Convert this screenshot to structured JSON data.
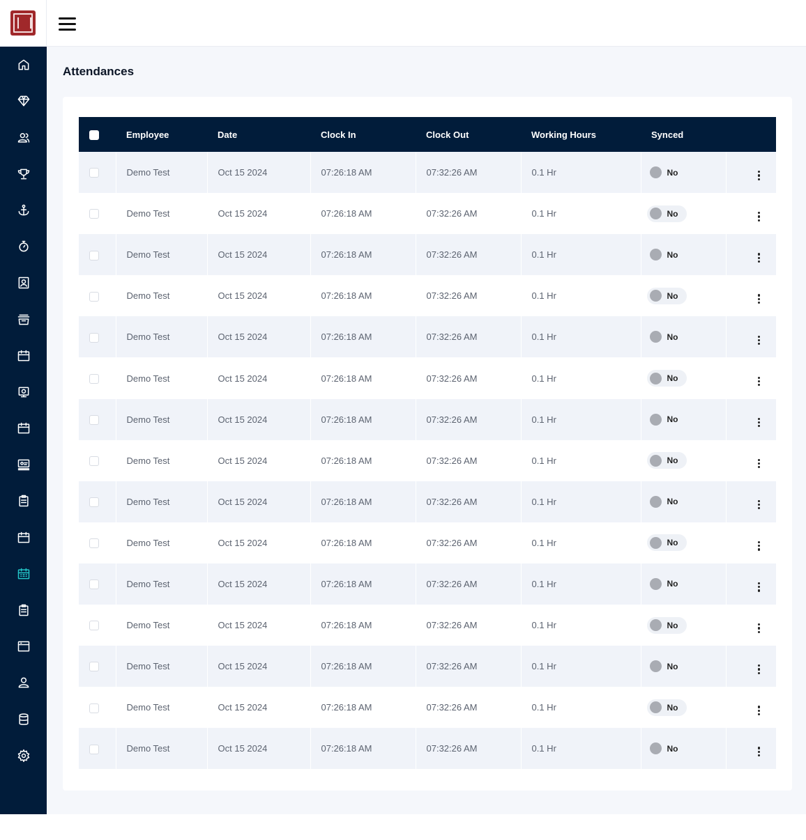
{
  "page": {
    "title": "Attendances"
  },
  "sidebar": {
    "items": [
      {
        "icon": "home-icon"
      },
      {
        "icon": "diamond-icon"
      },
      {
        "icon": "users-icon"
      },
      {
        "icon": "trophy-icon"
      },
      {
        "icon": "anchor-icon"
      },
      {
        "icon": "stopwatch-icon"
      },
      {
        "icon": "contact-card-icon"
      },
      {
        "icon": "inbox-tray-icon"
      },
      {
        "icon": "calendar-icon"
      },
      {
        "icon": "camera-icon"
      },
      {
        "icon": "calendar-icon"
      },
      {
        "icon": "id-card-icon"
      },
      {
        "icon": "clipboard-icon"
      },
      {
        "icon": "calendar-icon"
      },
      {
        "icon": "calendar-grid-icon",
        "active": true
      },
      {
        "icon": "clipboard-icon"
      },
      {
        "icon": "browser-window-icon"
      },
      {
        "icon": "user-icon"
      },
      {
        "icon": "database-icon"
      },
      {
        "icon": "settings-gear-icon"
      }
    ]
  },
  "table": {
    "columns": [
      "Employee",
      "Date",
      "Clock In",
      "Clock Out",
      "Working Hours",
      "Synced"
    ],
    "rows": [
      {
        "employee": "Demo Test",
        "date": "Oct 15 2024",
        "clock_in": "07:26:18 AM",
        "clock_out": "07:32:26 AM",
        "hours": "0.1 Hr",
        "synced": "No"
      },
      {
        "employee": "Demo Test",
        "date": "Oct 15 2024",
        "clock_in": "07:26:18 AM",
        "clock_out": "07:32:26 AM",
        "hours": "0.1 Hr",
        "synced": "No"
      },
      {
        "employee": "Demo Test",
        "date": "Oct 15 2024",
        "clock_in": "07:26:18 AM",
        "clock_out": "07:32:26 AM",
        "hours": "0.1 Hr",
        "synced": "No"
      },
      {
        "employee": "Demo Test",
        "date": "Oct 15 2024",
        "clock_in": "07:26:18 AM",
        "clock_out": "07:32:26 AM",
        "hours": "0.1 Hr",
        "synced": "No"
      },
      {
        "employee": "Demo Test",
        "date": "Oct 15 2024",
        "clock_in": "07:26:18 AM",
        "clock_out": "07:32:26 AM",
        "hours": "0.1 Hr",
        "synced": "No"
      },
      {
        "employee": "Demo Test",
        "date": "Oct 15 2024",
        "clock_in": "07:26:18 AM",
        "clock_out": "07:32:26 AM",
        "hours": "0.1 Hr",
        "synced": "No"
      },
      {
        "employee": "Demo Test",
        "date": "Oct 15 2024",
        "clock_in": "07:26:18 AM",
        "clock_out": "07:32:26 AM",
        "hours": "0.1 Hr",
        "synced": "No"
      },
      {
        "employee": "Demo Test",
        "date": "Oct 15 2024",
        "clock_in": "07:26:18 AM",
        "clock_out": "07:32:26 AM",
        "hours": "0.1 Hr",
        "synced": "No"
      },
      {
        "employee": "Demo Test",
        "date": "Oct 15 2024",
        "clock_in": "07:26:18 AM",
        "clock_out": "07:32:26 AM",
        "hours": "0.1 Hr",
        "synced": "No"
      },
      {
        "employee": "Demo Test",
        "date": "Oct 15 2024",
        "clock_in": "07:26:18 AM",
        "clock_out": "07:32:26 AM",
        "hours": "0.1 Hr",
        "synced": "No"
      },
      {
        "employee": "Demo Test",
        "date": "Oct 15 2024",
        "clock_in": "07:26:18 AM",
        "clock_out": "07:32:26 AM",
        "hours": "0.1 Hr",
        "synced": "No"
      },
      {
        "employee": "Demo Test",
        "date": "Oct 15 2024",
        "clock_in": "07:26:18 AM",
        "clock_out": "07:32:26 AM",
        "hours": "0.1 Hr",
        "synced": "No"
      },
      {
        "employee": "Demo Test",
        "date": "Oct 15 2024",
        "clock_in": "07:26:18 AM",
        "clock_out": "07:32:26 AM",
        "hours": "0.1 Hr",
        "synced": "No"
      },
      {
        "employee": "Demo Test",
        "date": "Oct 15 2024",
        "clock_in": "07:26:18 AM",
        "clock_out": "07:32:26 AM",
        "hours": "0.1 Hr",
        "synced": "No"
      },
      {
        "employee": "Demo Test",
        "date": "Oct 15 2024",
        "clock_in": "07:26:18 AM",
        "clock_out": "07:32:26 AM",
        "hours": "0.1 Hr",
        "synced": "No"
      }
    ]
  },
  "colors": {
    "sidebar_bg": "#011c3a",
    "table_header_bg": "#011c3a",
    "active_nav": "#23c6c8",
    "logo_red": "#a0282a",
    "page_bg": "#f5f7fb"
  }
}
